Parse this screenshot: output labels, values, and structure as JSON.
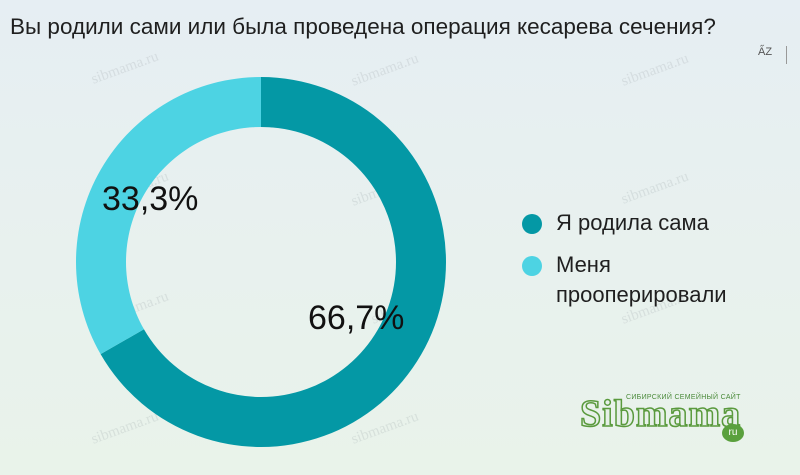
{
  "chart_data": {
    "type": "pie",
    "donut": true,
    "title": "Вы родили сами или была проведена операция кесарева сечения?",
    "slices": [
      {
        "label": "Я родила сама",
        "value": 66.7,
        "display": "66,7%",
        "color": "#0498a5"
      },
      {
        "label": "Меня прооперировали",
        "value": 33.3,
        "display": "33,3%",
        "color": "#4dd3e3"
      }
    ],
    "legend_position": "right"
  },
  "toolbar": {
    "sort_icon_label": "A̋Z"
  },
  "watermark_text": "sibmama.ru",
  "logo": {
    "brand": "Sibmama",
    "domain": "ru",
    "tagline": "СИБИРСКИЙ СЕМЕЙНЫЙ САЙТ"
  }
}
